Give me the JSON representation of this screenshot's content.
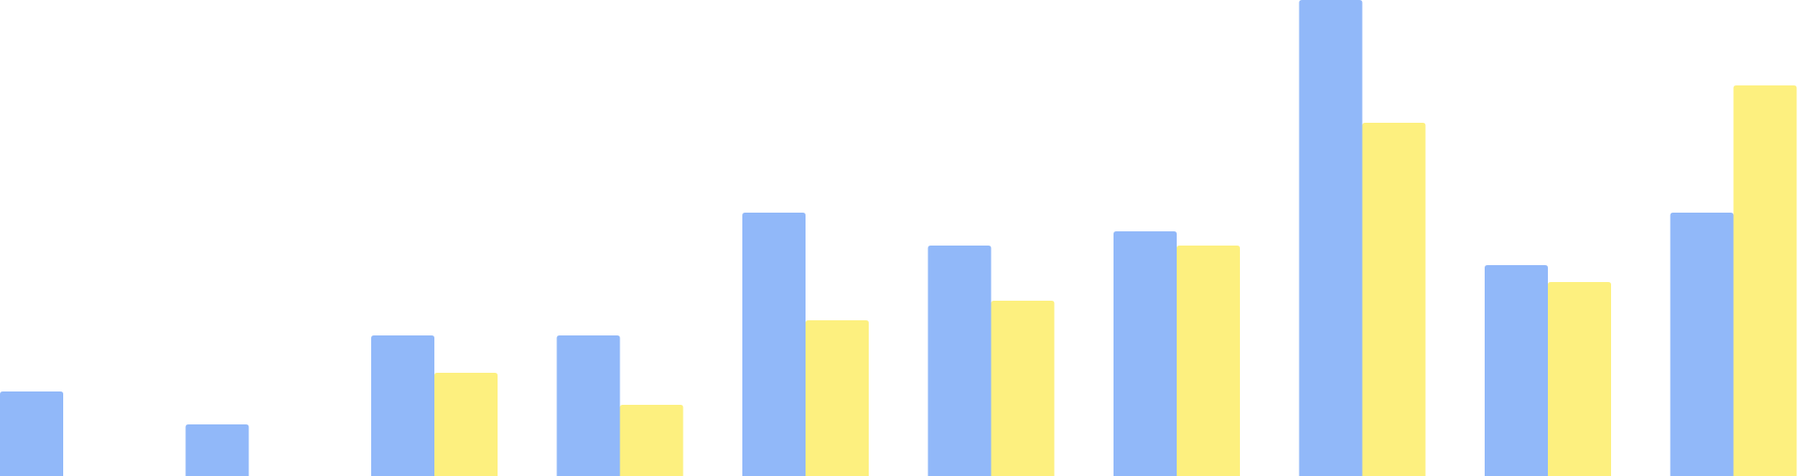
{
  "chart_data": {
    "type": "bar",
    "categories": [
      "",
      "",
      "",
      "",
      "",
      "",
      "",
      "",
      "",
      ""
    ],
    "series": [
      {
        "color": "#91b8f9",
        "values": [
          95,
          58,
          158,
          158,
          296,
          259,
          275,
          535,
          237,
          296
        ]
      },
      {
        "color": "#fdf07f",
        "values": [
          0,
          0,
          116,
          80,
          175,
          197,
          259,
          397,
          218,
          439
        ]
      }
    ],
    "ylim": [
      0,
      535
    ],
    "grid": false,
    "legend": "none"
  }
}
